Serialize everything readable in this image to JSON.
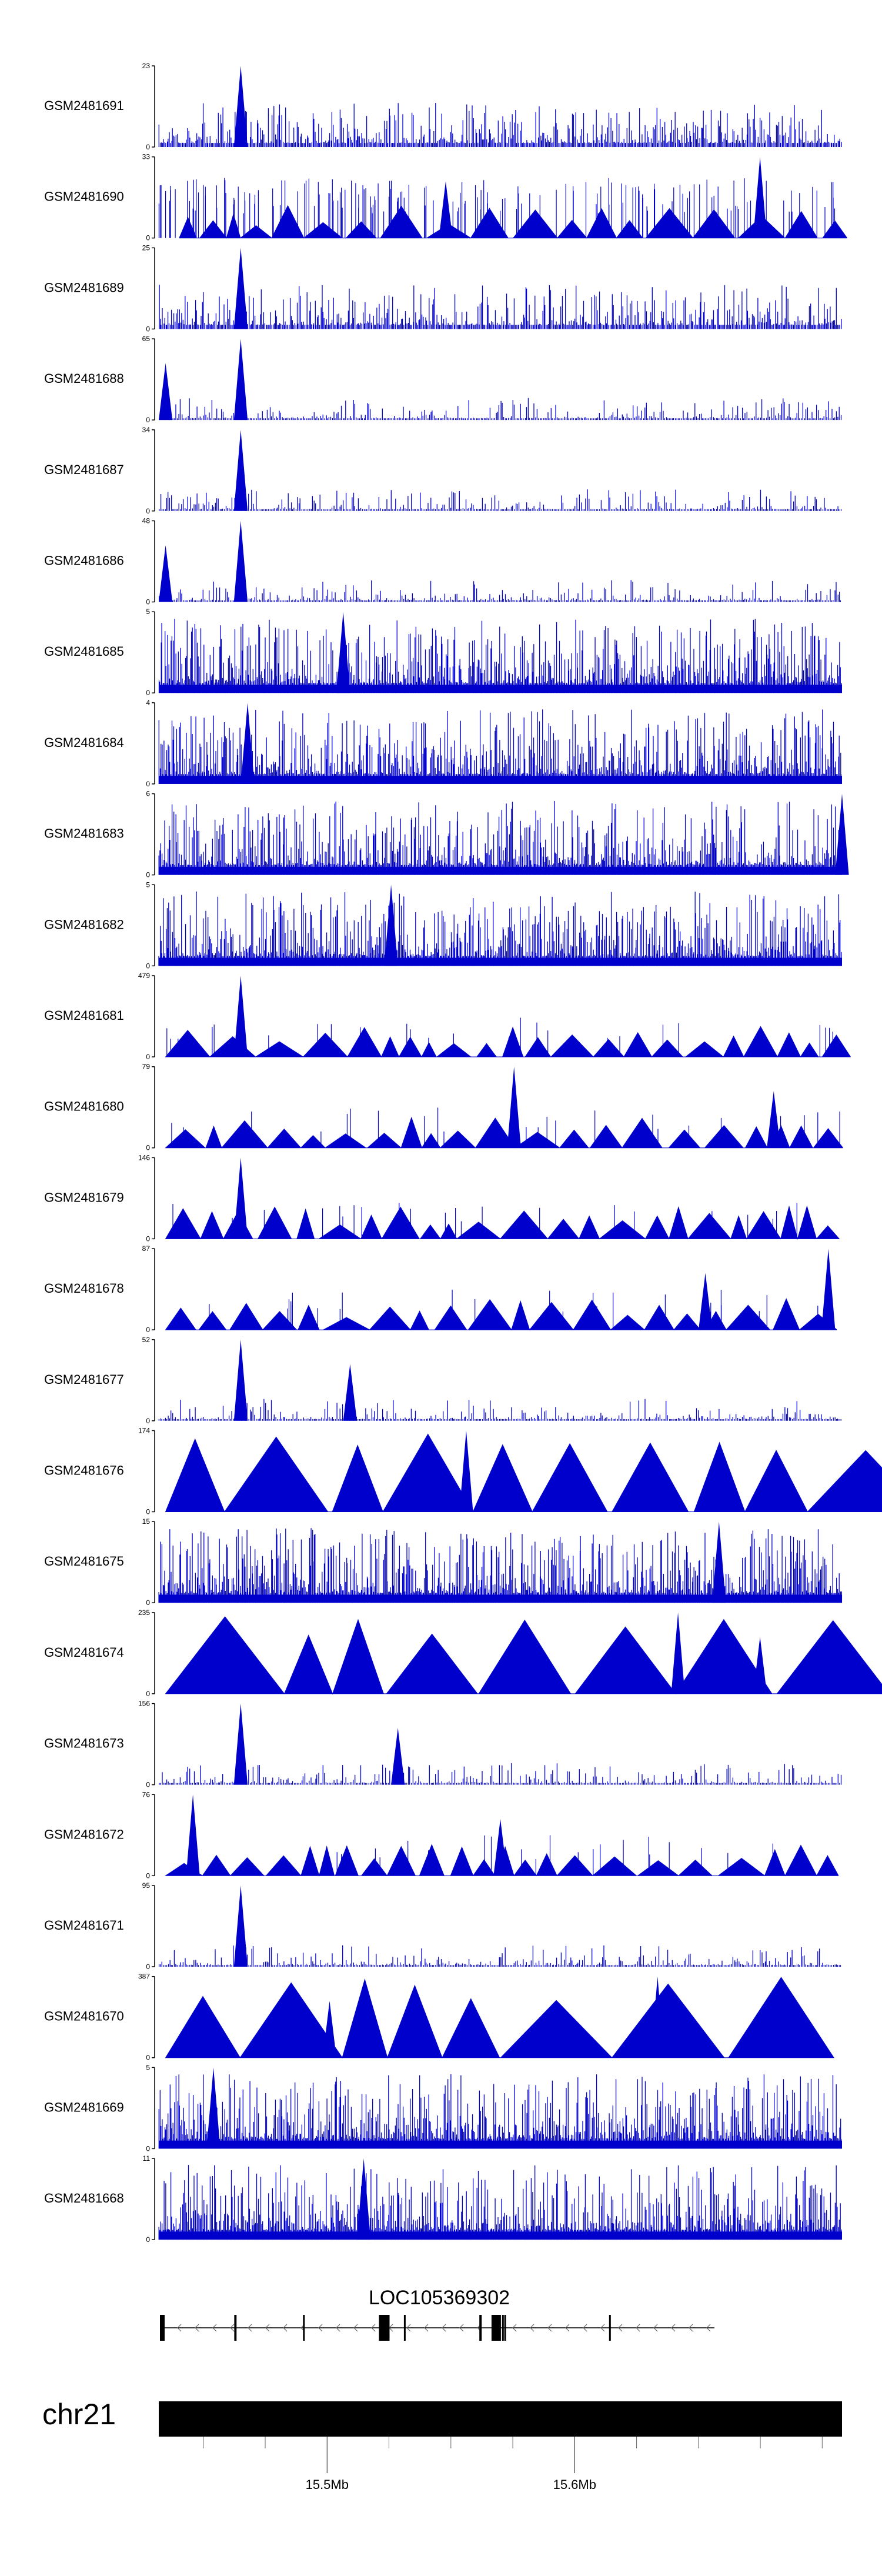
{
  "chart_data": {
    "type": "area",
    "title": "",
    "series_color": "#0000cc",
    "tracks": [
      {
        "name": "GSM2481691",
        "ymax": 23,
        "style": "dense",
        "peak_at": 0.12,
        "peak_frac": 1.0,
        "peak2_at": null
      },
      {
        "name": "GSM2481690",
        "ymax": 33,
        "style": "mixed",
        "peak_at": 0.88,
        "peak_frac": 1.0,
        "peak2_at": 0.42
      },
      {
        "name": "GSM2481689",
        "ymax": 25,
        "style": "dense",
        "peak_at": 0.12,
        "peak_frac": 1.0,
        "peak2_at": null
      },
      {
        "name": "GSM2481688",
        "ymax": 65,
        "style": "sparse",
        "peak_at": 0.12,
        "peak_frac": 1.0,
        "peak2_at": 0.01
      },
      {
        "name": "GSM2481687",
        "ymax": 34,
        "style": "sparse",
        "peak_at": 0.12,
        "peak_frac": 1.0,
        "peak2_at": null
      },
      {
        "name": "GSM2481686",
        "ymax": 48,
        "style": "sparse",
        "peak_at": 0.12,
        "peak_frac": 1.0,
        "peak2_at": 0.01
      },
      {
        "name": "GSM2481685",
        "ymax": 5,
        "style": "noisy",
        "peak_at": 0.27,
        "peak_frac": 1.0,
        "peak2_at": null
      },
      {
        "name": "GSM2481684",
        "ymax": 4,
        "style": "noisy",
        "peak_at": 0.13,
        "peak_frac": 1.0,
        "peak2_at": null
      },
      {
        "name": "GSM2481683",
        "ymax": 6,
        "style": "noisy",
        "peak_at": 1.0,
        "peak_frac": 1.0,
        "peak2_at": null
      },
      {
        "name": "GSM2481682",
        "ymax": 5,
        "style": "noisy",
        "peak_at": 0.34,
        "peak_frac": 1.0,
        "peak2_at": null
      },
      {
        "name": "GSM2481681",
        "ymax": 479,
        "style": "triangles",
        "peak_at": 0.12,
        "peak_frac": 1.0,
        "peak2_at": null
      },
      {
        "name": "GSM2481680",
        "ymax": 79,
        "style": "triangles",
        "peak_at": 0.52,
        "peak_frac": 1.0,
        "peak2_at": 0.9
      },
      {
        "name": "GSM2481679",
        "ymax": 146,
        "style": "triangles",
        "peak_at": 0.12,
        "peak_frac": 1.0,
        "peak2_at": null
      },
      {
        "name": "GSM2481678",
        "ymax": 87,
        "style": "triangles",
        "peak_at": 0.98,
        "peak_frac": 1.0,
        "peak2_at": 0.8
      },
      {
        "name": "GSM2481677",
        "ymax": 52,
        "style": "sparse",
        "peak_at": 0.12,
        "peak_frac": 1.0,
        "peak2_at": 0.28
      },
      {
        "name": "GSM2481676",
        "ymax": 174,
        "style": "bigtri",
        "peak_at": 0.45,
        "peak_frac": 1.0,
        "peak2_at": null
      },
      {
        "name": "GSM2481675",
        "ymax": 15,
        "style": "noisy",
        "peak_at": 0.82,
        "peak_frac": 1.0,
        "peak2_at": null
      },
      {
        "name": "GSM2481674",
        "ymax": 235,
        "style": "bigtri",
        "peak_at": 0.76,
        "peak_frac": 1.0,
        "peak2_at": 0.88
      },
      {
        "name": "GSM2481673",
        "ymax": 156,
        "style": "sparse",
        "peak_at": 0.12,
        "peak_frac": 1.0,
        "peak2_at": 0.35
      },
      {
        "name": "GSM2481672",
        "ymax": 76,
        "style": "triangles",
        "peak_at": 0.05,
        "peak_frac": 1.0,
        "peak2_at": 0.5
      },
      {
        "name": "GSM2481671",
        "ymax": 95,
        "style": "sparse",
        "peak_at": 0.12,
        "peak_frac": 1.0,
        "peak2_at": null
      },
      {
        "name": "GSM2481670",
        "ymax": 387,
        "style": "bigtri",
        "peak_at": 0.73,
        "peak_frac": 1.0,
        "peak2_at": 0.25
      },
      {
        "name": "GSM2481669",
        "ymax": 5,
        "style": "noisy",
        "peak_at": 0.08,
        "peak_frac": 1.0,
        "peak2_at": null
      },
      {
        "name": "GSM2481668",
        "ymax": 11,
        "style": "noisy",
        "peak_at": 0.3,
        "peak_frac": 1.0,
        "peak2_at": null
      }
    ],
    "gene": {
      "name": "LOC105369302",
      "strand": "-",
      "exons": [
        0.0,
        0.134,
        0.135,
        0.258,
        0.395,
        0.44,
        0.576,
        0.598,
        0.608,
        0.617,
        0.621,
        0.81
      ]
    },
    "ideogram": {
      "chromosome": "chr21",
      "x_range_mb": [
        15.432,
        15.708
      ],
      "tick_labels": [
        "15.5Mb",
        "15.6Mb"
      ],
      "tick_values_mb": [
        15.5,
        15.6
      ],
      "minor_ticks_mb": [
        15.45,
        15.475,
        15.525,
        15.55,
        15.575,
        15.625,
        15.65,
        15.675,
        15.7
      ]
    }
  }
}
